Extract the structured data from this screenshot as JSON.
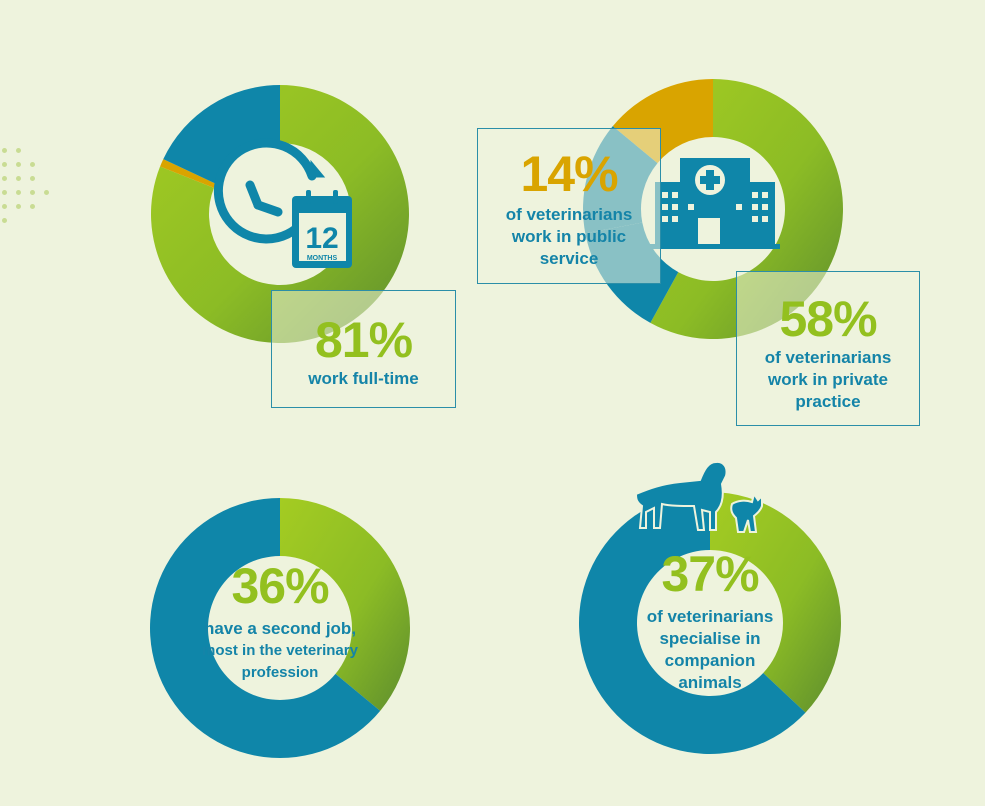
{
  "colors": {
    "background": "#eef3dd",
    "green": "#93c01f",
    "green_dark": "#5f8f2c",
    "blue": "#0f86a9",
    "gold": "#d9a400",
    "box_border": "#2b8ea8"
  },
  "chart_data": [
    {
      "type": "pie",
      "donut": true,
      "slices": [
        {
          "value": 81,
          "color": "green"
        },
        {
          "value": 1,
          "color": "gold"
        },
        {
          "value": 18,
          "color": "blue"
        }
      ],
      "label_value": "81%",
      "label_text": "work full-time",
      "icon": "clock-calendar-icon",
      "icon_text": "12",
      "icon_subtext": "MONTHS"
    },
    {
      "type": "pie",
      "donut": true,
      "slices": [
        {
          "value": 58,
          "color": "green"
        },
        {
          "value": 14,
          "color": "blue"
        },
        {
          "value": 14,
          "color": "blue"
        },
        {
          "value": 14,
          "color": "gold"
        }
      ],
      "labels": [
        {
          "value": "14%",
          "text": "of veterinarians work in public service",
          "color": "gold"
        },
        {
          "value": "58%",
          "text": "of veterinarians work in private practice",
          "color": "green"
        }
      ],
      "icon": "hospital-icon"
    },
    {
      "type": "pie",
      "donut": true,
      "slices": [
        {
          "value": 36,
          "color": "green"
        },
        {
          "value": 64,
          "color": "blue"
        }
      ],
      "label_value": "36%",
      "label_text_line1": "have a second job,",
      "label_text_line2": "most in the veterinary",
      "label_text_line3": "profession"
    },
    {
      "type": "pie",
      "donut": true,
      "slices": [
        {
          "value": 37,
          "color": "green"
        },
        {
          "value": 63,
          "color": "blue"
        }
      ],
      "label_value": "37%",
      "label_text_line1": "of veterinarians",
      "label_text_line2": "specialise in",
      "label_text_line3": "companion",
      "label_text_line4": "animals",
      "icon": "dog-and-cat-icon"
    }
  ],
  "text": {
    "c1_value": "81%",
    "c1_text": "work full-time",
    "c1_icon_num": "12",
    "c1_icon_sub": "MONTHS",
    "c2_public_value": "14%",
    "c2_public_l1": "of veterinarians",
    "c2_public_l2": "work in public",
    "c2_public_l3": "service",
    "c2_private_value": "58%",
    "c2_private_l1": "of veterinarians",
    "c2_private_l2": "work in private",
    "c2_private_l3": "practice",
    "c3_value": "36%",
    "c3_l1": "have a second job,",
    "c3_l2": "most in the veterinary",
    "c3_l3": "profession",
    "c4_value": "37%",
    "c4_l1": "of veterinarians",
    "c4_l2": "specialise in",
    "c4_l3": "companion",
    "c4_l4": "animals"
  }
}
